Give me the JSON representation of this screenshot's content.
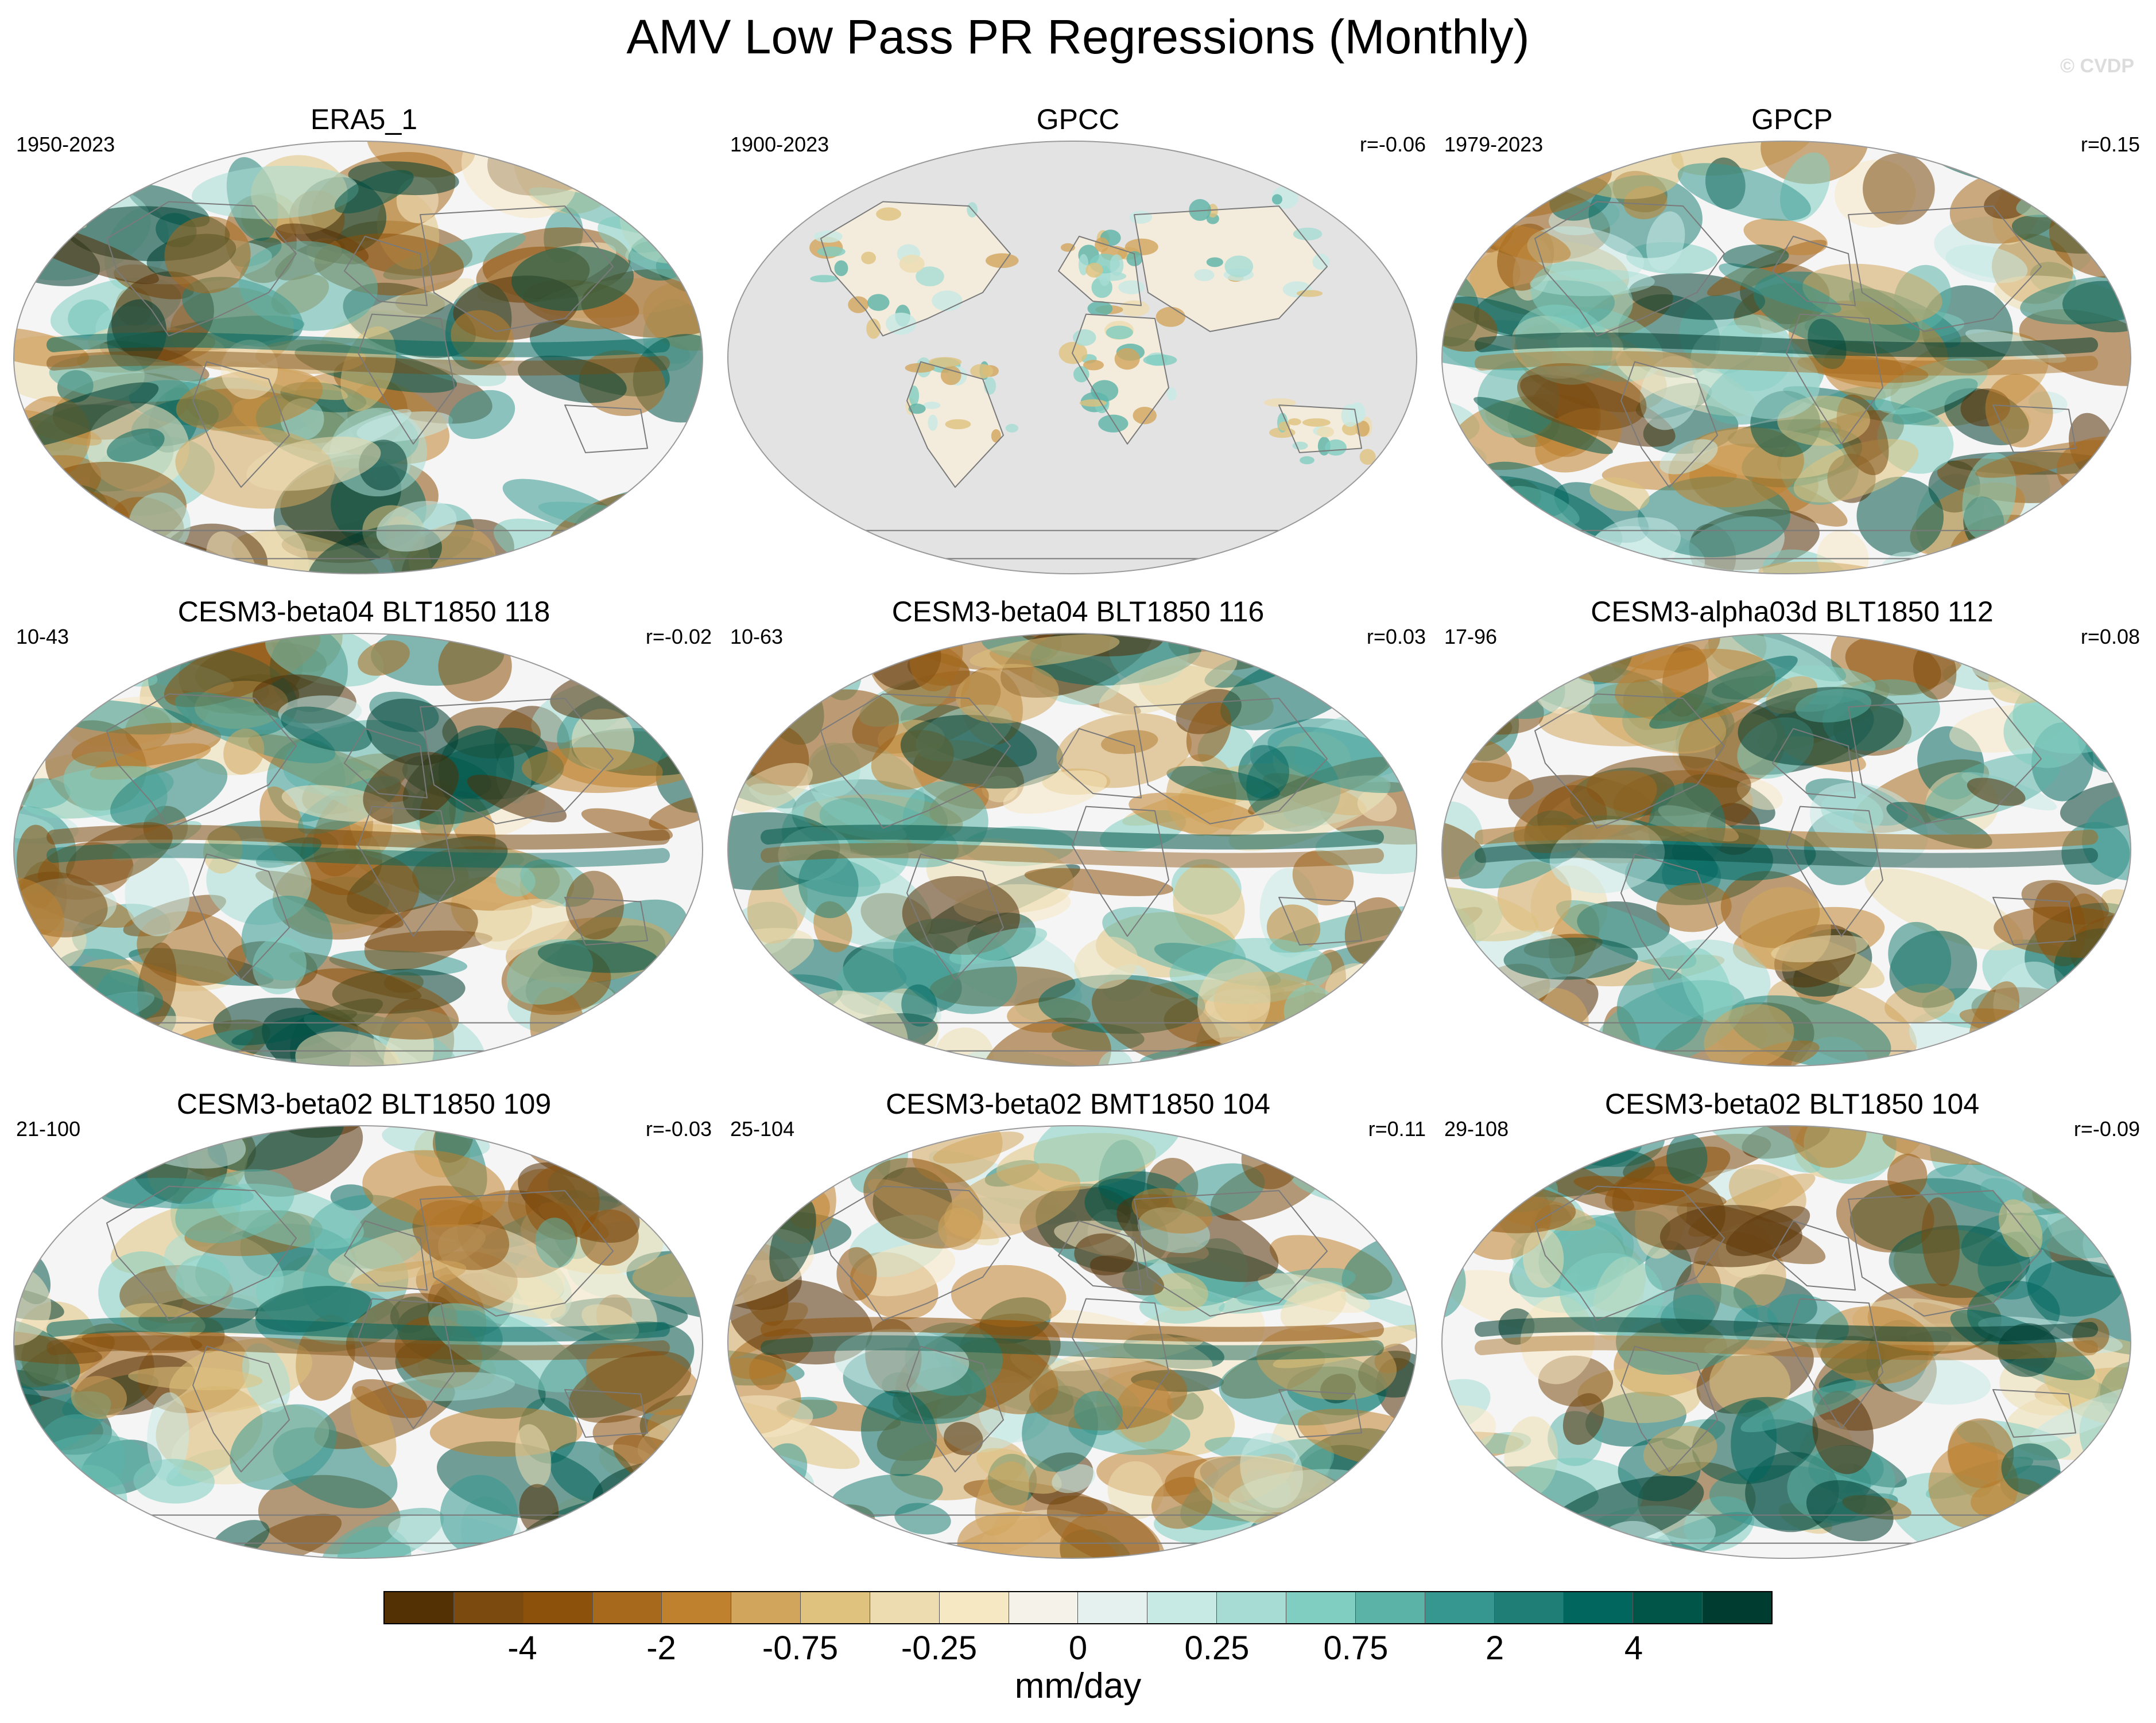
{
  "title": "AMV Low Pass PR Regressions (Monthly)",
  "copyright": "© CVDP",
  "colors": {
    "brown_dark": "#543005",
    "brown_mid": "#bf812d",
    "brown_light": "#f6e8c3",
    "neutral": "#f5f5f5",
    "teal_light": "#c7eae5",
    "teal_mid": "#35978f",
    "teal_dark": "#003c30",
    "land_gray": "#e3e3e3",
    "coastline": "#7a7a7a"
  },
  "panels": [
    {
      "title": "ERA5_1",
      "period": "1950-2023",
      "corr": "",
      "pattern": "era5",
      "masked": false
    },
    {
      "title": "GPCC",
      "period": "1900-2023",
      "corr": "r=-0.06",
      "pattern": "gpcc",
      "masked": true
    },
    {
      "title": "GPCP",
      "period": "1979-2023",
      "corr": "r=0.15",
      "pattern": "gpcp",
      "masked": false
    },
    {
      "title": "CESM3-beta04 BLT1850 118",
      "period": "10-43",
      "corr": "r=-0.02",
      "pattern": "b118",
      "masked": false
    },
    {
      "title": "CESM3-beta04 BLT1850 116",
      "period": "10-63",
      "corr": "r=0.03",
      "pattern": "b116",
      "masked": false
    },
    {
      "title": "CESM3-alpha03d BLT1850 112",
      "period": "17-96",
      "corr": "r=0.08",
      "pattern": "a112",
      "masked": false
    },
    {
      "title": "CESM3-beta02 BLT1850 109",
      "period": "21-100",
      "corr": "r=-0.03",
      "pattern": "b109",
      "masked": false
    },
    {
      "title": "CESM3-beta02 BMT1850 104",
      "period": "25-104",
      "corr": "r=0.11",
      "pattern": "bmt104",
      "masked": false
    },
    {
      "title": "CESM3-beta02 BLT1850 104",
      "period": "29-108",
      "corr": "r=-0.09",
      "pattern": "blt104",
      "masked": false
    }
  ],
  "colorbar": {
    "units": "mm/day",
    "colors": [
      "#543005",
      "#7a4a0e",
      "#8c510a",
      "#a76a1d",
      "#bf812d",
      "#d2a55d",
      "#dfc27d",
      "#eddcb0",
      "#f6e8c3",
      "#f5f2ea",
      "#e4f1ef",
      "#c7eae5",
      "#a6dcd4",
      "#80cdc1",
      "#5bb3a8",
      "#35978f",
      "#1f7f76",
      "#01665e",
      "#015548",
      "#003c30"
    ],
    "tick_labels": [
      "-4",
      "-2",
      "-0.75",
      "-0.25",
      "0",
      "0.25",
      "0.75",
      "2",
      "4"
    ]
  }
}
